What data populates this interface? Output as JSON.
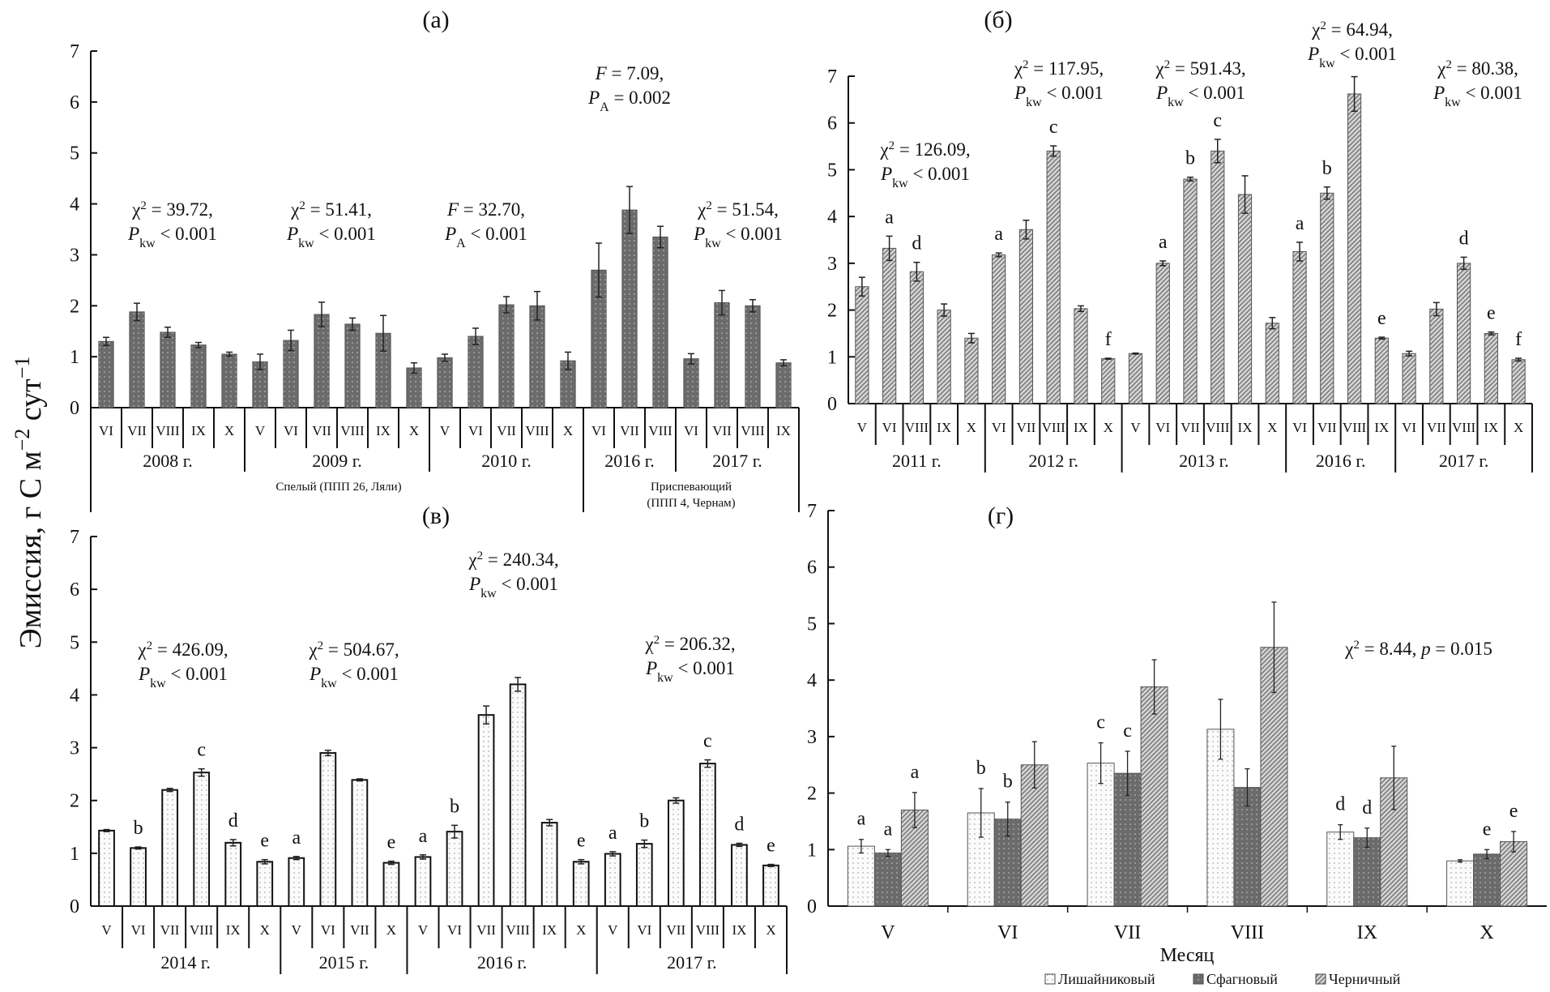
{
  "y_axis_label": {
    "main": "Эмиссия, г С м",
    "sup1": "−2",
    "mid": " сут",
    "sup2": "−1"
  },
  "chart_data": [
    {
      "panel": "(а)",
      "type": "bar",
      "ylim": [
        0,
        7
      ],
      "yticks": [
        0,
        1,
        2,
        3,
        4,
        5,
        6,
        7
      ],
      "groups": [
        {
          "year": "2008 г.",
          "months": [
            "VI",
            "VII",
            "VIII",
            "IX",
            "X"
          ],
          "values": [
            1.3,
            1.88,
            1.48,
            1.23,
            1.05
          ],
          "errors": [
            0.08,
            0.17,
            0.1,
            0.05,
            0.04
          ],
          "letters": [
            "",
            "",
            "",
            "",
            ""
          ]
        },
        {
          "year": "2009 г.",
          "months": [
            "V",
            "VI",
            "VII",
            "VIII",
            "IX",
            "X"
          ],
          "values": [
            0.9,
            1.32,
            1.83,
            1.64,
            1.46,
            0.78
          ],
          "errors": [
            0.15,
            0.2,
            0.24,
            0.12,
            0.35,
            0.1
          ],
          "letters": [
            "",
            "",
            "",
            "",
            "",
            ""
          ]
        },
        {
          "year": "2010 г.",
          "months": [
            "V",
            "VI",
            "VII",
            "VIII",
            "X"
          ],
          "values": [
            0.98,
            1.4,
            2.02,
            2.0,
            0.92
          ],
          "errors": [
            0.07,
            0.16,
            0.16,
            0.28,
            0.17
          ],
          "letters": [
            "",
            "",
            "",
            "",
            ""
          ]
        },
        {
          "year": "2016 г.",
          "months": [
            "VI",
            "VII",
            "VIII"
          ],
          "values": [
            2.7,
            3.88,
            3.35
          ],
          "errors": [
            0.53,
            0.46,
            0.21
          ],
          "letters": [
            "",
            "",
            ""
          ]
        },
        {
          "year": "2017 г.",
          "months": [
            "VI",
            "VII",
            "VIII",
            "IX"
          ],
          "values": [
            0.96,
            2.06,
            2.0,
            0.88
          ],
          "errors": [
            0.1,
            0.24,
            0.12,
            0.06
          ],
          "letters": [
            "",
            "",
            "",
            ""
          ]
        }
      ],
      "stand_groups": [
        {
          "lines": [
            "Спелый (ППП 26, Ляли)"
          ]
        },
        {
          "lines": [
            "Приспевающий",
            "(ППП 4, Чернам)"
          ]
        }
      ],
      "annotations": [
        {
          "stat": "χ",
          "stat_sup": "2",
          "value": "39.72,",
          "p_label": "P",
          "p_sub": "kw",
          "p_rel": "<",
          "p": "0.001"
        },
        {
          "stat": "χ",
          "stat_sup": "2",
          "value": "51.41,",
          "p_label": "P",
          "p_sub": "kw",
          "p_rel": "<",
          "p": "0.001"
        },
        {
          "stat": "F",
          "stat_sup": "",
          "value": "32.70,",
          "p_label": "P",
          "p_sub": "A",
          "p_rel": "<",
          "p": "0.001"
        },
        {
          "stat": "F",
          "stat_sup": "",
          "value": "7.09,",
          "p_label": "P",
          "p_sub": "A",
          "p_rel": "=",
          "p": "0.002"
        },
        {
          "stat": "χ",
          "stat_sup": "2",
          "value": "51.54,",
          "p_label": "P",
          "p_sub": "kw",
          "p_rel": "<",
          "p": "0.001"
        }
      ],
      "fill": "#6b6b6b"
    },
    {
      "panel": "(б)",
      "type": "bar",
      "ylim": [
        0,
        7
      ],
      "yticks": [
        0,
        1,
        2,
        3,
        4,
        5,
        6,
        7
      ],
      "groups": [
        {
          "year": "2011 г.",
          "months": [
            "V",
            "VI",
            "VIII",
            "IX",
            "X"
          ],
          "values": [
            2.5,
            3.32,
            2.82,
            2.0,
            1.4
          ],
          "errors": [
            0.2,
            0.26,
            0.2,
            0.13,
            0.1
          ],
          "letters": [
            "",
            "a",
            "d",
            "",
            ""
          ]
        },
        {
          "year": "2012 г.",
          "months": [
            "VI",
            "VII",
            "VIII",
            "IX",
            "X"
          ],
          "values": [
            3.18,
            3.72,
            5.4,
            2.03,
            0.96
          ],
          "errors": [
            0.04,
            0.2,
            0.11,
            0.06,
            0.01
          ],
          "letters": [
            "a",
            "",
            "c",
            "",
            "f"
          ]
        },
        {
          "year": "2013 г.",
          "months": [
            "V",
            "VI",
            "VII",
            "VIII",
            "IX",
            "X"
          ],
          "values": [
            1.07,
            3.0,
            4.8,
            5.4,
            4.47,
            1.72
          ],
          "errors": [
            0.01,
            0.05,
            0.04,
            0.25,
            0.4,
            0.12
          ],
          "letters": [
            "",
            "a",
            "b",
            "c",
            "",
            ""
          ]
        },
        {
          "year": "2016 г.",
          "months": [
            "VI",
            "VII",
            "VIII",
            "IX"
          ],
          "values": [
            3.25,
            4.5,
            6.62,
            1.4
          ],
          "errors": [
            0.2,
            0.13,
            0.37,
            0.02
          ],
          "letters": [
            "a",
            "b",
            "",
            "e"
          ]
        },
        {
          "year": "2017 г.",
          "months": [
            "VI",
            "VII",
            "VIII",
            "IX",
            "X"
          ],
          "values": [
            1.07,
            2.02,
            3.0,
            1.5,
            0.94
          ],
          "errors": [
            0.05,
            0.14,
            0.13,
            0.03,
            0.03
          ],
          "letters": [
            "",
            "",
            "d",
            "e",
            "f"
          ]
        }
      ],
      "annotations": [
        {
          "stat": "χ",
          "stat_sup": "2",
          "value": "126.09,",
          "p_label": "P",
          "p_sub": "kw",
          "p_rel": "<",
          "p": "0.001"
        },
        {
          "stat": "χ",
          "stat_sup": "2",
          "value": "117.95,",
          "p_label": "P",
          "p_sub": "kw",
          "p_rel": "<",
          "p": "0.001"
        },
        {
          "stat": "χ",
          "stat_sup": "2",
          "value": "591.43,",
          "p_label": "P",
          "p_sub": "kw",
          "p_rel": "<",
          "p": "0.001"
        },
        {
          "stat": "χ",
          "stat_sup": "2",
          "value": "64.94,",
          "p_label": "P",
          "p_sub": "kw",
          "p_rel": "<",
          "p": "0.001"
        },
        {
          "stat": "χ",
          "stat_sup": "2",
          "value": "80.38,",
          "p_label": "P",
          "p_sub": "kw",
          "p_rel": "<",
          "p": "0.001"
        }
      ],
      "fill": "hatched-gray"
    },
    {
      "panel": "(в)",
      "type": "bar",
      "ylim": [
        0,
        7
      ],
      "yticks": [
        0,
        1,
        2,
        3,
        4,
        5,
        6,
        7
      ],
      "groups": [
        {
          "year": "2014 г.",
          "months": [
            "V",
            "VI",
            "VII",
            "VIII",
            "IX",
            "X"
          ],
          "values": [
            1.43,
            1.1,
            2.2,
            2.53,
            1.2,
            0.84
          ],
          "errors": [
            0.02,
            0.02,
            0.03,
            0.07,
            0.06,
            0.04
          ],
          "letters": [
            "",
            "b",
            "",
            "c",
            "d",
            "e"
          ]
        },
        {
          "year": "2015 г.",
          "months": [
            "V",
            "VI",
            "VII",
            "X"
          ],
          "values": [
            0.91,
            2.9,
            2.39,
            0.82
          ],
          "errors": [
            0.03,
            0.05,
            0.02,
            0.03
          ],
          "letters": [
            "a",
            "",
            "",
            "e"
          ]
        },
        {
          "year": "2016 г.",
          "months": [
            "V",
            "VI",
            "VII",
            "VIII",
            "IX",
            "X"
          ],
          "values": [
            0.93,
            1.41,
            3.62,
            4.2,
            1.58,
            0.84
          ],
          "errors": [
            0.04,
            0.12,
            0.17,
            0.13,
            0.06,
            0.04
          ],
          "letters": [
            "a",
            "b",
            "",
            "",
            "",
            "e"
          ]
        },
        {
          "year": "2017 г.",
          "months": [
            "V",
            "VI",
            "VII",
            "VIII",
            "IX",
            "X"
          ],
          "values": [
            0.99,
            1.18,
            2.0,
            2.7,
            1.16,
            0.77
          ],
          "errors": [
            0.04,
            0.07,
            0.05,
            0.07,
            0.03,
            0.02
          ],
          "letters": [
            "a",
            "b",
            "",
            "c",
            "d",
            "e"
          ]
        }
      ],
      "annotations": [
        {
          "stat": "χ",
          "stat_sup": "2",
          "value": "426.09,",
          "p_label": "P",
          "p_sub": "kw",
          "p_rel": "<",
          "p": "0.001"
        },
        {
          "stat": "χ",
          "stat_sup": "2",
          "value": "504.67,",
          "p_label": "P",
          "p_sub": "kw",
          "p_rel": "<",
          "p": "0.001"
        },
        {
          "stat": "χ",
          "stat_sup": "2",
          "value": "240.34,",
          "p_label": "P",
          "p_sub": "kw",
          "p_rel": "<",
          "p": "0.001"
        },
        {
          "stat": "χ",
          "stat_sup": "2",
          "value": "206.32,",
          "p_label": "P",
          "p_sub": "kw",
          "p_rel": "<",
          "p": "0.001"
        }
      ],
      "fill": "dotted-white"
    },
    {
      "panel": "(г)",
      "type": "bar",
      "ylim": [
        0,
        7
      ],
      "yticks": [
        0,
        1,
        2,
        3,
        4,
        5,
        6,
        7
      ],
      "xlabel": "Месяц",
      "categories": [
        "V",
        "VI",
        "VII",
        "VIII",
        "IX",
        "X"
      ],
      "series": [
        {
          "name": "Лишайниковый",
          "values": [
            1.06,
            1.65,
            2.53,
            3.13,
            1.31,
            0.8
          ],
          "errors": [
            0.12,
            0.43,
            0.36,
            0.53,
            0.13,
            0.02
          ],
          "letters": [
            "a",
            "b",
            "c",
            "",
            "d",
            ""
          ],
          "fill": "dotted-white"
        },
        {
          "name": "Сфагновый",
          "values": [
            0.94,
            1.54,
            2.35,
            2.1,
            1.21,
            0.92
          ],
          "errors": [
            0.06,
            0.3,
            0.39,
            0.33,
            0.17,
            0.08
          ],
          "letters": [
            "a",
            "b",
            "c",
            "",
            "d",
            "e"
          ],
          "fill": "dotted-dark"
        },
        {
          "name": "Черничный",
          "values": [
            1.7,
            2.5,
            3.88,
            4.58,
            2.27,
            1.14
          ],
          "errors": [
            0.31,
            0.41,
            0.48,
            0.8,
            0.56,
            0.18
          ],
          "letters": [
            "a",
            "",
            "",
            "",
            "",
            "e"
          ],
          "fill": "hatched-gray"
        }
      ],
      "annotations": [
        {
          "stat": "χ",
          "stat_sup": "2",
          "value": "8.44,",
          "p_label": "p",
          "p_sub": "",
          "p_rel": "=",
          "p": "0.015",
          "single_line": true
        }
      ],
      "legend": "bottom-center"
    }
  ]
}
